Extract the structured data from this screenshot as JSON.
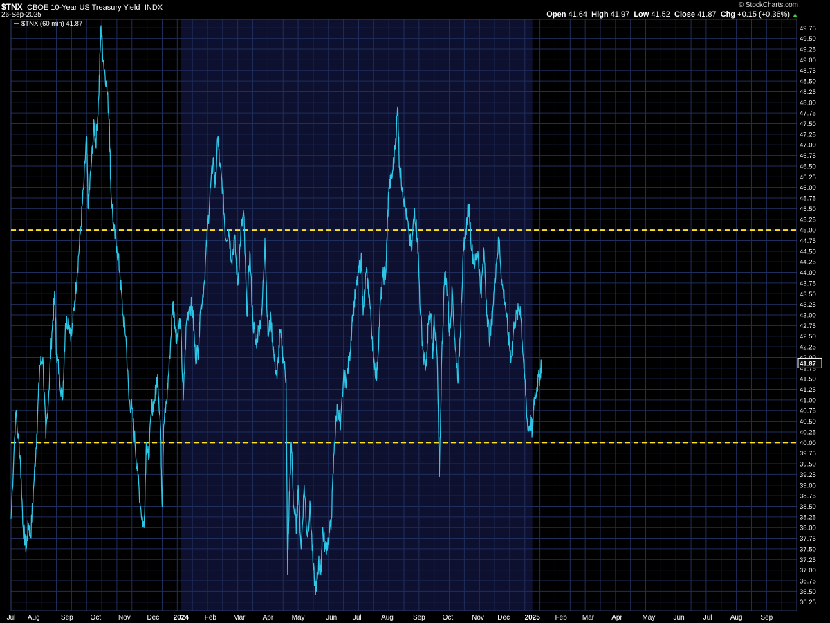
{
  "header": {
    "symbol": "$TNX",
    "description": "CBOE 10-Year US Treasury Yield",
    "exchange": "INDX",
    "date": "26-Sep-2025",
    "brand": "© StockCharts.com",
    "open_label": "Open",
    "open": "41.64",
    "high_label": "High",
    "high": "41.97",
    "low_label": "Low",
    "low": "41.52",
    "close_label": "Close",
    "close": "41.87",
    "chg_label": "Chg",
    "chg": "+0.15 (+0.36%)",
    "chg_arrow": "▲",
    "legend_label": "$TNX (60 min) 41.87"
  },
  "chart_data": {
    "type": "line",
    "title": "CBOE 10-Year US Treasury Yield",
    "series": [
      {
        "name": "$TNX (60 min)",
        "color": "#2ec6e6",
        "points": [
          [
            0,
            38.2
          ],
          [
            0.3,
            40.7
          ],
          [
            0.6,
            39.7
          ],
          [
            0.8,
            38.0
          ],
          [
            1.0,
            37.5
          ],
          [
            1.15,
            38.1
          ],
          [
            1.3,
            37.8
          ],
          [
            1.5,
            39.0
          ],
          [
            1.7,
            40.2
          ],
          [
            1.9,
            41.8
          ],
          [
            2.1,
            42.0
          ],
          [
            2.3,
            40.1
          ],
          [
            2.5,
            41.2
          ],
          [
            2.7,
            42.6
          ],
          [
            2.9,
            43.5
          ],
          [
            3.0,
            42.1
          ],
          [
            3.2,
            41.6
          ],
          [
            3.4,
            41.0
          ],
          [
            3.6,
            42.8
          ],
          [
            3.8,
            42.9
          ],
          [
            4.0,
            42.5
          ],
          [
            4.2,
            43.3
          ],
          [
            4.4,
            44.1
          ],
          [
            4.6,
            45.0
          ],
          [
            4.8,
            46.0
          ],
          [
            5.0,
            47.2
          ],
          [
            5.1,
            45.5
          ],
          [
            5.3,
            46.5
          ],
          [
            5.5,
            47.5
          ],
          [
            5.6,
            47.0
          ],
          [
            5.8,
            48.1
          ],
          [
            5.95,
            49.8
          ],
          [
            6.1,
            49.0
          ],
          [
            6.3,
            48.5
          ],
          [
            6.5,
            47.6
          ],
          [
            6.6,
            46.0
          ],
          [
            6.8,
            45.0
          ],
          [
            7.0,
            44.6
          ],
          [
            7.2,
            44.0
          ],
          [
            7.4,
            43.0
          ],
          [
            7.6,
            42.5
          ],
          [
            7.8,
            41.0
          ],
          [
            8.0,
            40.8
          ],
          [
            8.2,
            40.0
          ],
          [
            8.4,
            39.2
          ],
          [
            8.6,
            38.4
          ],
          [
            8.8,
            38.0
          ],
          [
            8.95,
            40.0
          ],
          [
            9.1,
            39.6
          ],
          [
            9.3,
            40.8
          ],
          [
            9.5,
            41.0
          ],
          [
            9.7,
            41.6
          ],
          [
            9.9,
            40.3
          ],
          [
            10.0,
            38.5
          ],
          [
            10.1,
            40.4
          ],
          [
            10.3,
            41.0
          ],
          [
            10.5,
            42.0
          ],
          [
            10.7,
            43.3
          ],
          [
            10.9,
            42.6
          ],
          [
            11.0,
            42.5
          ],
          [
            11.2,
            42.9
          ],
          [
            11.4,
            41.0
          ],
          [
            11.6,
            42.8
          ],
          [
            11.8,
            43.2
          ],
          [
            12.0,
            43.2
          ],
          [
            12.2,
            42.0
          ],
          [
            12.4,
            42.2
          ],
          [
            12.5,
            43.0
          ],
          [
            12.8,
            43.8
          ],
          [
            13.0,
            45.0
          ],
          [
            13.2,
            46.0
          ],
          [
            13.4,
            46.7
          ],
          [
            13.5,
            46.0
          ],
          [
            13.7,
            47.2
          ],
          [
            13.8,
            46.5
          ],
          [
            14.0,
            46.0
          ],
          [
            14.2,
            44.8
          ],
          [
            14.4,
            45.0
          ],
          [
            14.6,
            44.3
          ],
          [
            14.8,
            44.8
          ],
          [
            15.0,
            43.7
          ],
          [
            15.2,
            44.9
          ],
          [
            15.4,
            45.4
          ],
          [
            15.6,
            43.0
          ],
          [
            15.8,
            44.5
          ],
          [
            16.0,
            42.9
          ],
          [
            16.2,
            42.3
          ],
          [
            16.4,
            42.7
          ],
          [
            16.6,
            43.0
          ],
          [
            16.8,
            44.8
          ],
          [
            17.0,
            42.5
          ],
          [
            17.2,
            42.9
          ],
          [
            17.4,
            42.0
          ],
          [
            17.6,
            41.5
          ],
          [
            17.8,
            42.6
          ],
          [
            18.0,
            42.0
          ],
          [
            18.2,
            41.5
          ],
          [
            18.3,
            36.9
          ],
          [
            18.4,
            38.5
          ],
          [
            18.55,
            40.0
          ],
          [
            18.7,
            38.5
          ],
          [
            18.9,
            38.0
          ],
          [
            19.0,
            39.0
          ],
          [
            19.2,
            37.5
          ],
          [
            19.4,
            39.0
          ],
          [
            19.6,
            37.8
          ],
          [
            19.8,
            38.5
          ],
          [
            20.0,
            37.0
          ],
          [
            20.2,
            36.5
          ],
          [
            20.35,
            37.2
          ],
          [
            20.5,
            36.9
          ],
          [
            20.6,
            38.0
          ],
          [
            20.8,
            37.5
          ],
          [
            21.0,
            37.7
          ],
          [
            21.2,
            38.2
          ],
          [
            21.4,
            40.0
          ],
          [
            21.6,
            40.9
          ],
          [
            21.8,
            40.3
          ],
          [
            22.0,
            41.5
          ],
          [
            22.2,
            41.5
          ],
          [
            22.4,
            42.0
          ],
          [
            22.6,
            43.0
          ],
          [
            22.8,
            43.5
          ],
          [
            23.0,
            44.0
          ],
          [
            23.2,
            44.3
          ],
          [
            23.3,
            43.0
          ],
          [
            23.5,
            44.0
          ],
          [
            23.7,
            43.5
          ],
          [
            23.9,
            42.5
          ],
          [
            24.0,
            42.0
          ],
          [
            24.2,
            41.5
          ],
          [
            24.4,
            43.0
          ],
          [
            24.6,
            43.9
          ],
          [
            24.8,
            44.0
          ],
          [
            24.9,
            45.0
          ],
          [
            25.0,
            46.0
          ],
          [
            25.2,
            46.2
          ],
          [
            25.4,
            46.9
          ],
          [
            25.6,
            47.9
          ],
          [
            25.7,
            46.5
          ],
          [
            25.9,
            46.0
          ],
          [
            26.1,
            45.5
          ],
          [
            26.3,
            45.0
          ],
          [
            26.5,
            44.5
          ],
          [
            26.7,
            45.5
          ],
          [
            26.9,
            44.8
          ],
          [
            27.1,
            43.0
          ],
          [
            27.3,
            42.0
          ],
          [
            27.5,
            41.8
          ],
          [
            27.6,
            42.8
          ],
          [
            27.8,
            43.0
          ],
          [
            27.9,
            42.0
          ],
          [
            28.0,
            43.0
          ],
          [
            28.2,
            42.0
          ],
          [
            28.35,
            39.2
          ],
          [
            28.5,
            42.0
          ],
          [
            28.7,
            44.0
          ],
          [
            28.9,
            43.5
          ],
          [
            29.0,
            42.5
          ],
          [
            29.2,
            43.6
          ],
          [
            29.4,
            42.2
          ],
          [
            29.6,
            41.5
          ],
          [
            29.8,
            43.3
          ],
          [
            29.95,
            44.5
          ],
          [
            30.1,
            45.0
          ],
          [
            30.3,
            45.6
          ],
          [
            30.5,
            44.5
          ],
          [
            30.7,
            44.2
          ],
          [
            30.9,
            44.5
          ],
          [
            31.1,
            43.5
          ],
          [
            31.3,
            44.5
          ],
          [
            31.5,
            43.0
          ],
          [
            31.7,
            42.4
          ],
          [
            31.9,
            43.2
          ],
          [
            32.1,
            44.2
          ],
          [
            32.3,
            44.8
          ],
          [
            32.5,
            43.7
          ],
          [
            32.7,
            43.3
          ],
          [
            32.9,
            42.5
          ],
          [
            33.1,
            42.0
          ],
          [
            33.3,
            42.8
          ],
          [
            33.5,
            43.0
          ],
          [
            33.7,
            43.2
          ],
          [
            33.9,
            42.0
          ],
          [
            34.0,
            41.5
          ],
          [
            34.2,
            40.3
          ],
          [
            34.4,
            40.5
          ],
          [
            34.5,
            40.2
          ],
          [
            34.6,
            41.0
          ],
          [
            34.8,
            41.3
          ],
          [
            35.0,
            41.6
          ],
          [
            35.1,
            41.87
          ]
        ]
      }
    ],
    "x_ticks": [
      {
        "label": "Jul",
        "w": 0
      },
      {
        "label": "Aug",
        "w": 1.5
      },
      {
        "label": "Sep",
        "w": 3.7
      },
      {
        "label": "Oct",
        "w": 5.6
      },
      {
        "label": "Nov",
        "w": 7.5
      },
      {
        "label": "Dec",
        "w": 9.4
      },
      {
        "label": "2024",
        "w": 11.25,
        "bold": true
      },
      {
        "label": "Feb",
        "w": 13.2
      },
      {
        "label": "Mar",
        "w": 15.1
      },
      {
        "label": "Apr",
        "w": 17.0
      },
      {
        "label": "May",
        "w": 19.0
      },
      {
        "label": "Jun",
        "w": 21.2
      },
      {
        "label": "Jul",
        "w": 22.9
      },
      {
        "label": "Aug",
        "w": 24.9
      },
      {
        "label": "Sep",
        "w": 27.0
      },
      {
        "label": "Oct",
        "w": 28.9
      },
      {
        "label": "Nov",
        "w": 30.9
      },
      {
        "label": "Dec",
        "w": 32.6
      },
      {
        "label": "2025",
        "w": 34.5,
        "bold": true
      },
      {
        "label": "Feb",
        "w": 36.4
      },
      {
        "label": "Mar",
        "w": 38.2
      },
      {
        "label": "Apr",
        "w": 40.1
      },
      {
        "label": "May",
        "w": 42.2
      },
      {
        "label": "Jun",
        "w": 44.2
      },
      {
        "label": "Jul",
        "w": 46.1
      },
      {
        "label": "Aug",
        "w": 48.0
      },
      {
        "label": "Sep",
        "w": 50.0
      }
    ],
    "y_ticks": [
      "36.25",
      "36.50",
      "36.75",
      "37.00",
      "37.25",
      "37.50",
      "37.75",
      "38.00",
      "38.25",
      "38.50",
      "38.75",
      "39.00",
      "39.25",
      "39.50",
      "39.75",
      "40.00",
      "40.25",
      "40.50",
      "40.75",
      "41.00",
      "41.25",
      "41.50",
      "41.75",
      "42.00",
      "42.25",
      "42.50",
      "42.75",
      "43.00",
      "43.25",
      "43.50",
      "43.75",
      "44.00",
      "44.25",
      "44.50",
      "44.75",
      "45.00",
      "45.25",
      "45.50",
      "45.75",
      "46.00",
      "46.25",
      "46.50",
      "46.75",
      "47.00",
      "47.25",
      "47.50",
      "47.75",
      "48.00",
      "48.25",
      "48.50",
      "48.75",
      "49.00",
      "49.25",
      "49.50",
      "49.75"
    ],
    "ylim": [
      36.05,
      49.95
    ],
    "reference_lines": [
      45.0,
      40.0
    ],
    "reference_color": "#ffe21a",
    "shaded_year": "2024",
    "shade_color": "#0e1030",
    "grid": true,
    "last_value": "41.87",
    "legend_position": "top-left"
  }
}
